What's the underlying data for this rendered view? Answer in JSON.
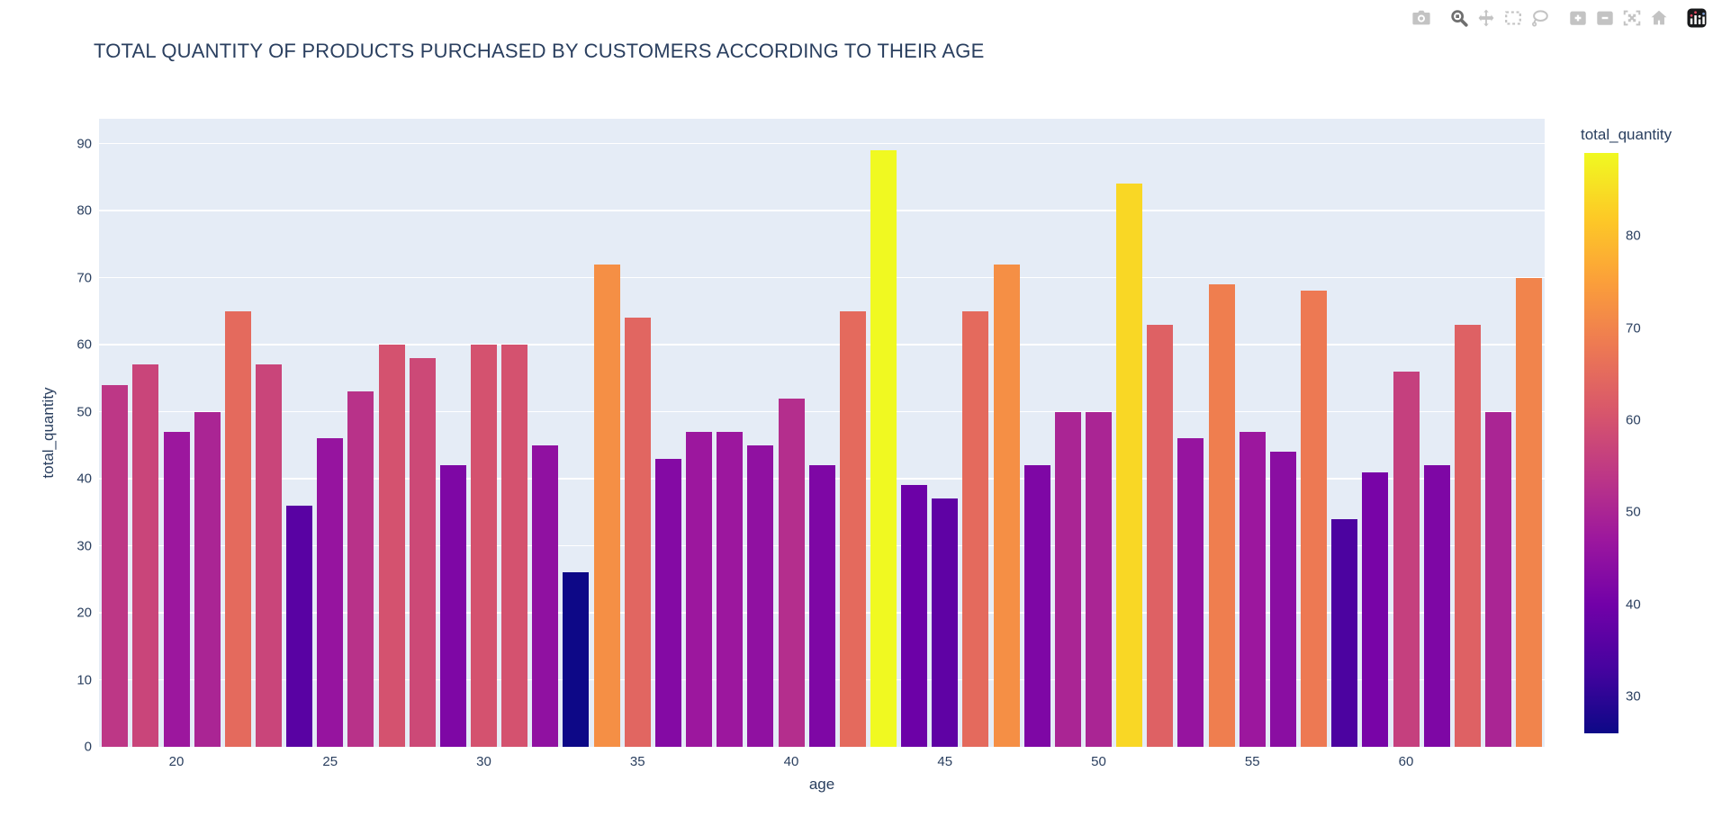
{
  "page": {
    "background": "#ffffff",
    "font_color": "#2a3f5f"
  },
  "modebar": {
    "buttons": [
      "download-plot-as-png",
      "zoom",
      "pan",
      "box-select",
      "lasso-select",
      "zoom-in",
      "zoom-out",
      "autoscale",
      "reset-axes",
      "plotly-logo"
    ],
    "active_button": "zoom",
    "inactive_color": "#c3c3c3",
    "active_color": "#6f6f6f",
    "logo_colors": {
      "background": "#17181a",
      "bars": "#ffffff",
      "dot_red": "#e0465e",
      "dot_blue": "#7a9bd0"
    }
  },
  "chart_data": {
    "type": "bar",
    "title": "TOTAL QUANTITY OF PRODUCTS PURCHASED BY CUSTOMERS ACCORDING TO THEIR AGE",
    "xlabel": "age",
    "ylabel": "total_quantity",
    "x": [
      18,
      19,
      20,
      21,
      22,
      23,
      24,
      25,
      26,
      27,
      28,
      29,
      30,
      31,
      32,
      33,
      34,
      35,
      36,
      37,
      38,
      39,
      40,
      41,
      42,
      43,
      44,
      45,
      46,
      47,
      48,
      49,
      50,
      51,
      52,
      53,
      54,
      55,
      56,
      57,
      58,
      59,
      60,
      61,
      62,
      63,
      64
    ],
    "values": [
      54,
      57,
      47,
      50,
      65,
      57,
      36,
      46,
      53,
      60,
      58,
      42,
      60,
      60,
      45,
      26,
      72,
      64,
      43,
      47,
      47,
      45,
      52,
      42,
      65,
      89,
      39,
      37,
      65,
      72,
      42,
      50,
      50,
      84,
      63,
      46,
      69,
      47,
      44,
      68,
      34,
      41,
      56,
      42,
      63,
      50,
      70
    ],
    "ylim": [
      0,
      93.7
    ],
    "yticks": [
      0,
      10,
      20,
      30,
      40,
      50,
      60,
      70,
      80,
      90
    ],
    "xticks": [
      20,
      25,
      30,
      35,
      40,
      45,
      50,
      55,
      60
    ],
    "grid": true,
    "legend_position": "none",
    "plot_bgcolor": "#e5ecf6",
    "grid_color": "#ffffff",
    "color_by": "total_quantity",
    "colorscale": {
      "name": "plasma",
      "stops": [
        [
          0.0,
          "#0d0887"
        ],
        [
          0.1111,
          "#46039f"
        ],
        [
          0.2222,
          "#7201a8"
        ],
        [
          0.3333,
          "#9c179e"
        ],
        [
          0.4444,
          "#bd3786"
        ],
        [
          0.5556,
          "#d8576b"
        ],
        [
          0.6667,
          "#ed7953"
        ],
        [
          0.7778,
          "#fb9f3a"
        ],
        [
          0.8889,
          "#fdca26"
        ],
        [
          1.0,
          "#f0f921"
        ]
      ]
    },
    "colorbar": {
      "title": "total_quantity",
      "range": [
        26,
        89
      ],
      "ticks": [
        30,
        40,
        50,
        60,
        70,
        80
      ]
    }
  }
}
